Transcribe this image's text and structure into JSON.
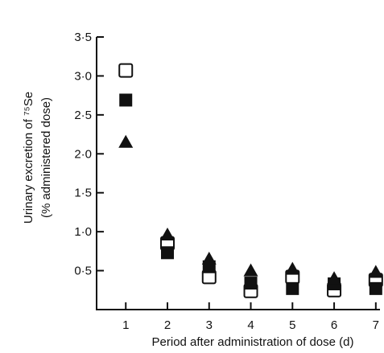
{
  "chart_data": {
    "type": "scatter",
    "title": "",
    "xlabel": "Period after administration of dose (d)",
    "ylabel_line1": "Urinary excretion of ⁷⁵Se",
    "ylabel_line2": "(% administered dose)",
    "x_ticks": [
      "1",
      "2",
      "3",
      "4",
      "5",
      "6",
      "7"
    ],
    "y_ticks": [
      "3·5",
      "3·0",
      "2·5",
      "2·0",
      "1·5",
      "1·0",
      "0·5"
    ],
    "xlim": [
      0.3,
      7.1
    ],
    "ylim": [
      0,
      3.5
    ],
    "grid": false,
    "legend": "none",
    "series": [
      {
        "marker": "open-square",
        "color": "#111111",
        "x": [
          1,
          2,
          3,
          4,
          5,
          6,
          7
        ],
        "y": [
          3.07,
          0.85,
          0.42,
          0.24,
          0.42,
          0.25,
          0.38
        ]
      },
      {
        "marker": "filled-square",
        "color": "#111111",
        "x": [
          1,
          2,
          3,
          4,
          5,
          6,
          7
        ],
        "y": [
          2.69,
          0.73,
          0.55,
          0.34,
          0.27,
          0.33,
          0.27
        ]
      },
      {
        "marker": "filled-triangle",
        "color": "#111111",
        "x": [
          1,
          2,
          3,
          4,
          5,
          6,
          7
        ],
        "y": [
          2.15,
          0.96,
          0.65,
          0.5,
          0.52,
          0.4,
          0.48
        ]
      }
    ]
  }
}
